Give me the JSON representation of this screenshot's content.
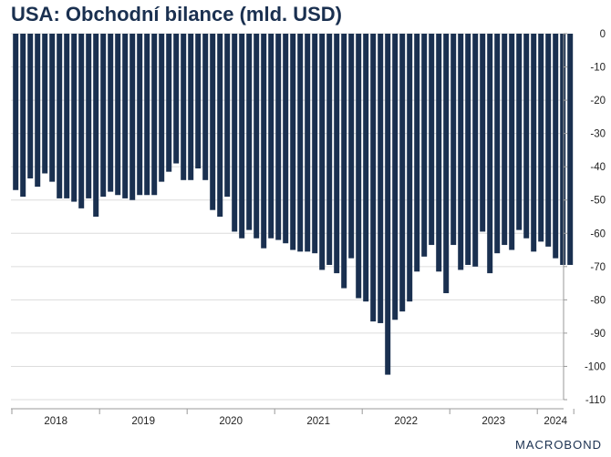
{
  "chart_data": {
    "type": "bar",
    "title": "USA: Obchodní bilance (mld. USD)",
    "xlabel": "",
    "ylabel": "",
    "ylim": [
      -110,
      0
    ],
    "yticks": [
      0,
      -10,
      -20,
      -30,
      -40,
      -50,
      -60,
      -70,
      -80,
      -90,
      -100,
      -110
    ],
    "grid": true,
    "year_labels": [
      "2018",
      "2019",
      "2020",
      "2021",
      "2022",
      "2023",
      "2024"
    ],
    "bar_color": "#1a3050",
    "series": [
      {
        "values": [
          -47,
          -49,
          -43.5,
          -46,
          -42,
          -44.5,
          -49.5,
          -49.5,
          -50.5,
          -52.5,
          -49.5,
          -55,
          -49,
          -47.5,
          -48.5,
          -49.5,
          -50,
          -48.5,
          -48.5,
          -48.5,
          -44.5,
          -41.5,
          -39,
          -44,
          -44,
          -40.5,
          -44,
          -53,
          -55,
          -49,
          -59.5,
          -61.5,
          -59,
          -61.5,
          -64.5,
          -61.5,
          -62,
          -63,
          -65,
          -65.5,
          -65.5,
          -66,
          -71,
          -69.5,
          -72,
          -76.5,
          -67.5,
          -79.5,
          -80.5,
          -86.5,
          -87,
          -102.5,
          -86,
          -83.5,
          -80.5,
          -71.5,
          -67,
          -63.5,
          -71.5,
          -78,
          -63.5,
          -71,
          -69.5,
          -70,
          -59.5,
          -72,
          -66,
          -63.5,
          -65,
          -59,
          -61.5,
          -65.5,
          -62.5,
          -64,
          -67.5,
          -69.5,
          -69.5
        ]
      }
    ]
  },
  "brand": "MACROBOND"
}
